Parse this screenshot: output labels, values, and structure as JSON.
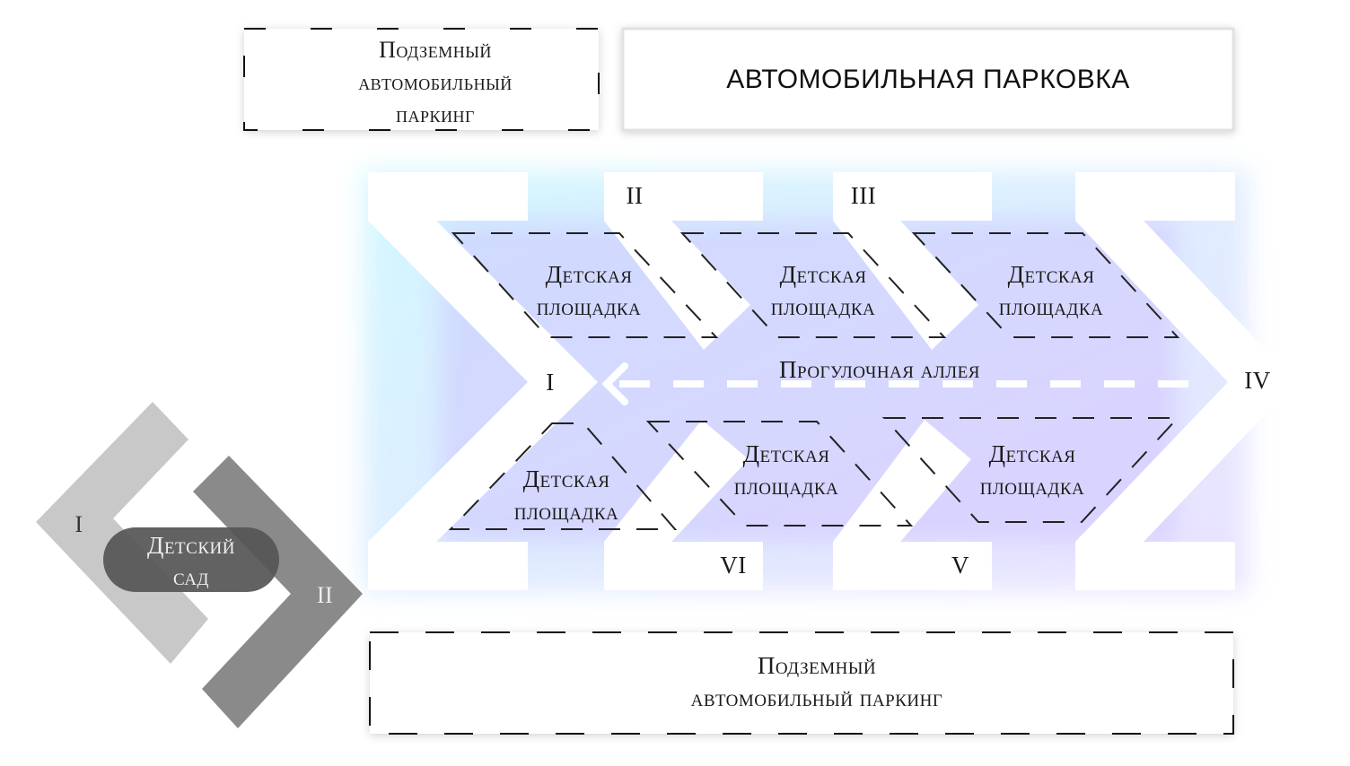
{
  "top_left_parking": {
    "text": "Подземный автомобильный паркинг"
  },
  "top_parking": {
    "text": "АВТОМОБИЛЬНАЯ ПАРКОВКА"
  },
  "bottom_parking": {
    "line1": "Подземный",
    "line2": "автомобильный паркинг"
  },
  "alley": {
    "text": "Прогулочная аллея"
  },
  "playgrounds": [
    {
      "line1": "Детская",
      "line2": "площадка"
    },
    {
      "line1": "Детская",
      "line2": "площадка"
    },
    {
      "line1": "Детская",
      "line2": "площадка"
    },
    {
      "line1": "Детская",
      "line2": "площадка"
    },
    {
      "line1": "Детская",
      "line2": "площадка"
    },
    {
      "line1": "Детская",
      "line2": "площадка"
    }
  ],
  "buildings": {
    "I": "I",
    "II": "II",
    "III": "III",
    "IV": "IV",
    "V": "V",
    "VI": "VI"
  },
  "kindergarten": {
    "line1": "Детский",
    "line2": "сад",
    "wing_I": "I",
    "wing_II": "II"
  },
  "colors": {
    "glow_cyan": "#7ee8ff",
    "glow_violet": "#c9b6ff",
    "kg_light": "#c8c8c8",
    "kg_dark": "#8a8a8a",
    "kg_label_bg": "#555555"
  }
}
